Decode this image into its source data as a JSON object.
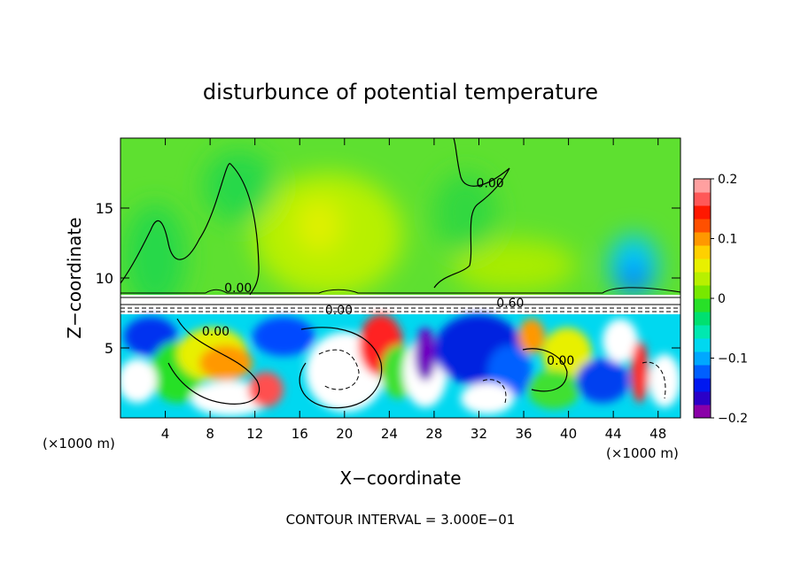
{
  "chart_data": {
    "type": "heatmap",
    "title": "disturbunce of potential temperature",
    "xlabel": "X−coordinate",
    "ylabel": "Z−coordinate",
    "x_unit_left": "(×1000 m)",
    "x_unit_right": "(×1000 m)",
    "footer": "CONTOUR INTERVAL = 3.000E−01",
    "xlim": [
      0,
      50
    ],
    "ylim": [
      0,
      20
    ],
    "x_ticks": [
      "4",
      "8",
      "12",
      "16",
      "20",
      "24",
      "28",
      "32",
      "36",
      "40",
      "44",
      "48"
    ],
    "x_tick_values": [
      4,
      8,
      12,
      16,
      20,
      24,
      28,
      32,
      36,
      40,
      44,
      48
    ],
    "y_ticks": [
      "5",
      "10",
      "15"
    ],
    "y_tick_values": [
      5,
      10,
      15
    ],
    "colorbar": {
      "min": -0.2,
      "max": 0.2,
      "tick_labels": [
        "0.2",
        "0.1",
        "0",
        "−0.1",
        "−0.2"
      ],
      "tick_values": [
        0.2,
        0.1,
        0,
        -0.1,
        -0.2
      ],
      "colors": [
        "#8a00a8",
        "#2a00c8",
        "#0018f0",
        "#0060ff",
        "#00a8ff",
        "#00d8f0",
        "#00e8b0",
        "#00e070",
        "#28e028",
        "#78e800",
        "#b8f000",
        "#e8f000",
        "#ffd000",
        "#ff9800",
        "#ff5000",
        "#ff1800",
        "#ff5858",
        "#ffa0a0"
      ]
    },
    "contour_labels": [
      "0.00",
      "0.00",
      "0.00",
      "0.00",
      "0.00",
      "0.60"
    ],
    "contour_label_positions": [
      {
        "x": 33.0,
        "y": 16.5
      },
      {
        "x": 10.5,
        "y": 9.0
      },
      {
        "x": 19.5,
        "y": 7.4
      },
      {
        "x": 8.5,
        "y": 5.9
      },
      {
        "x": 39.3,
        "y": 3.8
      },
      {
        "x": 34.8,
        "y": 7.9
      }
    ]
  }
}
